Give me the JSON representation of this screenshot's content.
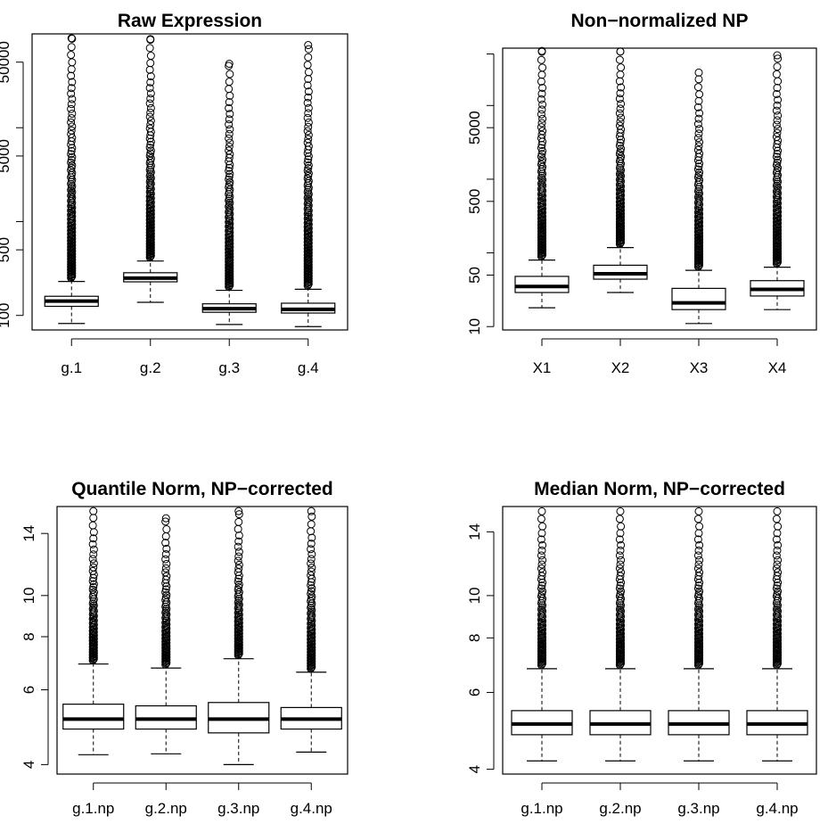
{
  "chart_data": [
    {
      "type": "boxplot",
      "title": "Raw Expression",
      "log_scale": true,
      "ylim": [
        70,
        100000
      ],
      "yticks": [
        100,
        500,
        5000,
        50000
      ],
      "yticks_labeled": [
        "100",
        "500",
        "5000",
        "50000"
      ],
      "yticks_extra": [
        1000,
        10000
      ],
      "categories": [
        "g.1",
        "g.2",
        "g.3",
        "g.4"
      ],
      "boxes": [
        {
          "whisker_low": 82,
          "q1": 125,
          "median": 142,
          "q3": 160,
          "whisker_high": 230,
          "outlier_max": 90000
        },
        {
          "whisker_low": 138,
          "q1": 228,
          "median": 250,
          "q3": 285,
          "whisker_high": 380,
          "outlier_max": 88000
        },
        {
          "whisker_low": 80,
          "q1": 108,
          "median": 118,
          "q3": 133,
          "whisker_high": 185,
          "outlier_max": 48000
        },
        {
          "whisker_low": 76,
          "q1": 106,
          "median": 116,
          "q3": 135,
          "whisker_high": 190,
          "outlier_max": 76000
        }
      ]
    },
    {
      "type": "boxplot",
      "title": "Non−normalized NP",
      "log_scale": true,
      "ylim": [
        9,
        60000
      ],
      "yticks": [
        10,
        50,
        500,
        5000
      ],
      "yticks_labeled": [
        "10",
        "50",
        "500",
        "5000"
      ],
      "yticks_extra": [
        100,
        1000,
        10000,
        50000
      ],
      "categories": [
        "X1",
        "X2",
        "X3",
        "X4"
      ],
      "boxes": [
        {
          "whisker_low": 18,
          "q1": 29,
          "median": 35,
          "q3": 48,
          "whisker_high": 80,
          "outlier_max": 55000
        },
        {
          "whisker_low": 29,
          "q1": 44,
          "median": 52,
          "q3": 68,
          "whisker_high": 118,
          "outlier_max": 54000
        },
        {
          "whisker_low": 11,
          "q1": 17,
          "median": 21,
          "q3": 33,
          "whisker_high": 58,
          "outlier_max": 28000
        },
        {
          "whisker_low": 17,
          "q1": 26,
          "median": 32,
          "q3": 42,
          "whisker_high": 64,
          "outlier_max": 48000
        }
      ]
    },
    {
      "type": "boxplot",
      "title": "Quantile Norm, NP−corrected",
      "log_scale": true,
      "ylim": [
        3.8,
        16.2
      ],
      "yticks": [
        4,
        6,
        8,
        10,
        14
      ],
      "yticks_labeled": [
        "4",
        "6",
        "8",
        "10",
        "14"
      ],
      "yticks_extra": [],
      "categories": [
        "g.1.np",
        "g.2.np",
        "g.3.np",
        "g.4.np"
      ],
      "boxes": [
        {
          "whisker_low": 4.22,
          "q1": 4.85,
          "median": 5.12,
          "q3": 5.55,
          "whisker_high": 6.9,
          "outlier_max": 15.8
        },
        {
          "whisker_low": 4.24,
          "q1": 4.85,
          "median": 5.12,
          "q3": 5.5,
          "whisker_high": 6.75,
          "outlier_max": 15.2
        },
        {
          "whisker_low": 4.0,
          "q1": 4.75,
          "median": 5.12,
          "q3": 5.6,
          "whisker_high": 7.1,
          "outlier_max": 15.8
        },
        {
          "whisker_low": 4.28,
          "q1": 4.85,
          "median": 5.12,
          "q3": 5.45,
          "whisker_high": 6.6,
          "outlier_max": 15.8
        }
      ]
    },
    {
      "type": "boxplot",
      "title": "Median Norm, NP−corrected",
      "log_scale": true,
      "ylim": [
        3.9,
        16.0
      ],
      "yticks": [
        4,
        6,
        8,
        10,
        14
      ],
      "yticks_labeled": [
        "4",
        "6",
        "8",
        "10",
        "14"
      ],
      "yticks_extra": [],
      "categories": [
        "g.1.np",
        "g.2.np",
        "g.3.np",
        "g.4.np"
      ],
      "boxes": [
        {
          "whisker_low": 4.18,
          "q1": 4.8,
          "median": 5.08,
          "q3": 5.45,
          "whisker_high": 6.8,
          "outlier_max": 15.6
        },
        {
          "whisker_low": 4.18,
          "q1": 4.8,
          "median": 5.08,
          "q3": 5.45,
          "whisker_high": 6.8,
          "outlier_max": 15.6
        },
        {
          "whisker_low": 4.18,
          "q1": 4.8,
          "median": 5.08,
          "q3": 5.45,
          "whisker_high": 6.8,
          "outlier_max": 15.6
        },
        {
          "whisker_low": 4.18,
          "q1": 4.8,
          "median": 5.08,
          "q3": 5.45,
          "whisker_high": 6.8,
          "outlier_max": 15.6
        }
      ]
    }
  ]
}
